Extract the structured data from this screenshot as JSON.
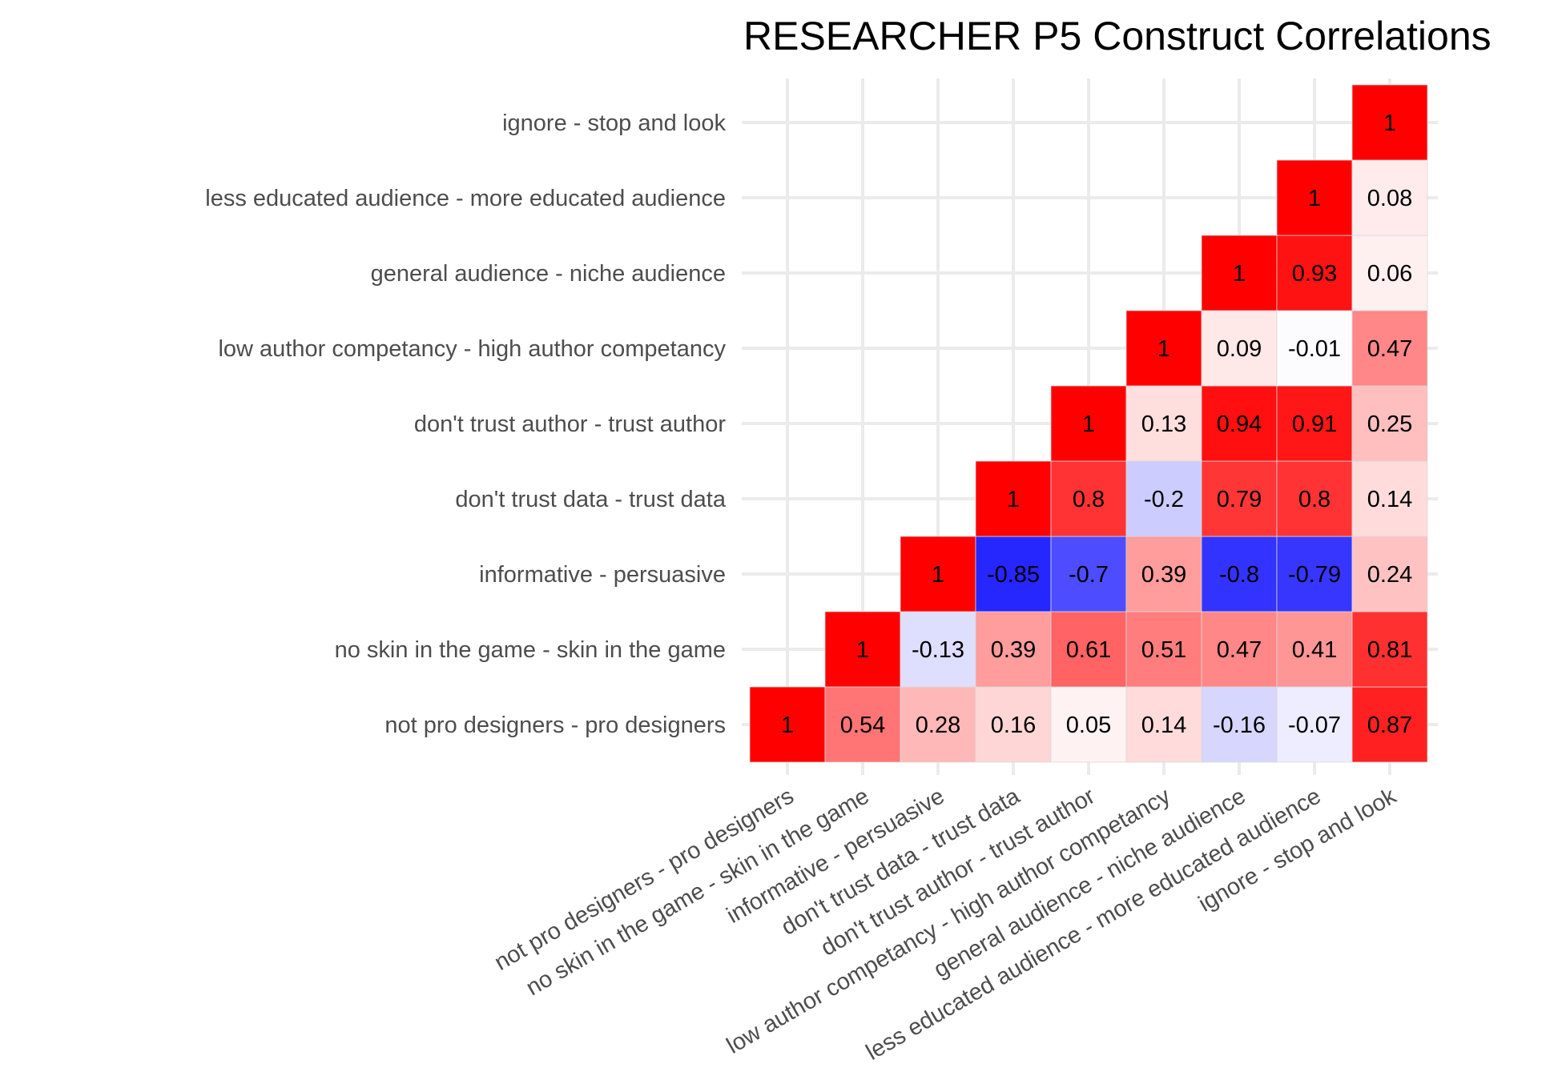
{
  "chart_data": {
    "type": "heatmap",
    "title": "RESEARCHER P5 Construct Correlations",
    "xlabel": "",
    "ylabel": "",
    "constructs": [
      "not pro designers - pro designers",
      "no skin in the game - skin in the game",
      "informative - persuasive",
      "don't trust data - trust data",
      "don't trust author - trust author",
      "low author competancy - high author competancy",
      "general audience - niche audience",
      "less educated audience - more educated audience",
      "ignore - stop and look"
    ],
    "layout": "lower-triangle",
    "value_range": [
      -1,
      1
    ],
    "colors": {
      "low": "#0000ff",
      "mid": "#ffffff",
      "high": "#ff0000"
    },
    "grid": true,
    "legend": "none",
    "cells": [
      {
        "x": "not pro designers - pro designers",
        "y": "not pro designers - pro designers",
        "value": 1,
        "label": "1"
      },
      {
        "x": "no skin in the game - skin in the game",
        "y": "not pro designers - pro designers",
        "value": 0.54,
        "label": "0.54"
      },
      {
        "x": "informative - persuasive",
        "y": "not pro designers - pro designers",
        "value": 0.28,
        "label": "0.28"
      },
      {
        "x": "don't trust data - trust data",
        "y": "not pro designers - pro designers",
        "value": 0.16,
        "label": "0.16"
      },
      {
        "x": "don't trust author - trust author",
        "y": "not pro designers - pro designers",
        "value": 0.05,
        "label": "0.05"
      },
      {
        "x": "low author competancy - high author competancy",
        "y": "not pro designers - pro designers",
        "value": 0.14,
        "label": "0.14"
      },
      {
        "x": "general audience - niche audience",
        "y": "not pro designers - pro designers",
        "value": -0.16,
        "label": "-0.16"
      },
      {
        "x": "less educated audience - more educated audience",
        "y": "not pro designers - pro designers",
        "value": -0.07,
        "label": "-0.07"
      },
      {
        "x": "ignore - stop and look",
        "y": "not pro designers - pro designers",
        "value": 0.87,
        "label": "0.87"
      },
      {
        "x": "no skin in the game - skin in the game",
        "y": "no skin in the game - skin in the game",
        "value": 1,
        "label": "1"
      },
      {
        "x": "informative - persuasive",
        "y": "no skin in the game - skin in the game",
        "value": -0.13,
        "label": "-0.13"
      },
      {
        "x": "don't trust data - trust data",
        "y": "no skin in the game - skin in the game",
        "value": 0.39,
        "label": "0.39"
      },
      {
        "x": "don't trust author - trust author",
        "y": "no skin in the game - skin in the game",
        "value": 0.61,
        "label": "0.61"
      },
      {
        "x": "low author competancy - high author competancy",
        "y": "no skin in the game - skin in the game",
        "value": 0.51,
        "label": "0.51"
      },
      {
        "x": "general audience - niche audience",
        "y": "no skin in the game - skin in the game",
        "value": 0.47,
        "label": "0.47"
      },
      {
        "x": "less educated audience - more educated audience",
        "y": "no skin in the game - skin in the game",
        "value": 0.41,
        "label": "0.41"
      },
      {
        "x": "ignore - stop and look",
        "y": "no skin in the game - skin in the game",
        "value": 0.81,
        "label": "0.81"
      },
      {
        "x": "informative - persuasive",
        "y": "informative - persuasive",
        "value": 1,
        "label": "1"
      },
      {
        "x": "don't trust data - trust data",
        "y": "informative - persuasive",
        "value": -0.85,
        "label": "-0.85"
      },
      {
        "x": "don't trust author - trust author",
        "y": "informative - persuasive",
        "value": -0.7,
        "label": "-0.7"
      },
      {
        "x": "low author competancy - high author competancy",
        "y": "informative - persuasive",
        "value": 0.39,
        "label": "0.39"
      },
      {
        "x": "general audience - niche audience",
        "y": "informative - persuasive",
        "value": -0.8,
        "label": "-0.8"
      },
      {
        "x": "less educated audience - more educated audience",
        "y": "informative - persuasive",
        "value": -0.79,
        "label": "-0.79"
      },
      {
        "x": "ignore - stop and look",
        "y": "informative - persuasive",
        "value": 0.24,
        "label": "0.24"
      },
      {
        "x": "don't trust data - trust data",
        "y": "don't trust data - trust data",
        "value": 1,
        "label": "1"
      },
      {
        "x": "don't trust author - trust author",
        "y": "don't trust data - trust data",
        "value": 0.8,
        "label": "0.8"
      },
      {
        "x": "low author competancy - high author competancy",
        "y": "don't trust data - trust data",
        "value": -0.2,
        "label": "-0.2"
      },
      {
        "x": "general audience - niche audience",
        "y": "don't trust data - trust data",
        "value": 0.79,
        "label": "0.79"
      },
      {
        "x": "less educated audience - more educated audience",
        "y": "don't trust data - trust data",
        "value": 0.8,
        "label": "0.8"
      },
      {
        "x": "ignore - stop and look",
        "y": "don't trust data - trust data",
        "value": 0.14,
        "label": "0.14"
      },
      {
        "x": "don't trust author - trust author",
        "y": "don't trust author - trust author",
        "value": 1,
        "label": "1"
      },
      {
        "x": "low author competancy - high author competancy",
        "y": "don't trust author - trust author",
        "value": 0.13,
        "label": "0.13"
      },
      {
        "x": "general audience - niche audience",
        "y": "don't trust author - trust author",
        "value": 0.94,
        "label": "0.94"
      },
      {
        "x": "less educated audience - more educated audience",
        "y": "don't trust author - trust author",
        "value": 0.91,
        "label": "0.91"
      },
      {
        "x": "ignore - stop and look",
        "y": "don't trust author - trust author",
        "value": 0.25,
        "label": "0.25"
      },
      {
        "x": "low author competancy - high author competancy",
        "y": "low author competancy - high author competancy",
        "value": 1,
        "label": "1"
      },
      {
        "x": "general audience - niche audience",
        "y": "low author competancy - high author competancy",
        "value": 0.09,
        "label": "0.09"
      },
      {
        "x": "less educated audience - more educated audience",
        "y": "low author competancy - high author competancy",
        "value": -0.01,
        "label": "-0.01"
      },
      {
        "x": "ignore - stop and look",
        "y": "low author competancy - high author competancy",
        "value": 0.47,
        "label": "0.47"
      },
      {
        "x": "general audience - niche audience",
        "y": "general audience - niche audience",
        "value": 1,
        "label": "1"
      },
      {
        "x": "less educated audience - more educated audience",
        "y": "general audience - niche audience",
        "value": 0.93,
        "label": "0.93"
      },
      {
        "x": "ignore - stop and look",
        "y": "general audience - niche audience",
        "value": 0.06,
        "label": "0.06"
      },
      {
        "x": "less educated audience - more educated audience",
        "y": "less educated audience - more educated audience",
        "value": 1,
        "label": "1"
      },
      {
        "x": "ignore - stop and look",
        "y": "less educated audience - more educated audience",
        "value": 0.08,
        "label": "0.08"
      },
      {
        "x": "ignore - stop and look",
        "y": "ignore - stop and look",
        "value": 1,
        "label": "1"
      }
    ]
  }
}
